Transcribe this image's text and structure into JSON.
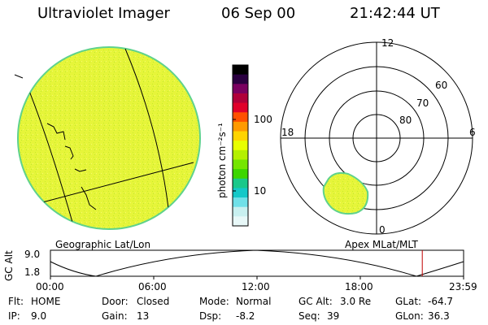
{
  "header": {
    "title": "Ultraviolet Imager",
    "date": "06 Sep 00",
    "time": "21:42:44 UT"
  },
  "colorbar": {
    "unit_label": "photon cm⁻²s⁻¹",
    "ticks": [
      "100",
      "10"
    ],
    "colors": [
      "#000000",
      "#2a0040",
      "#7a0060",
      "#b0003a",
      "#e0002a",
      "#ff5000",
      "#ff9a00",
      "#ffd400",
      "#e8ff00",
      "#b4f000",
      "#74e600",
      "#3cd600",
      "#1ac88a",
      "#14c8c8",
      "#70e0e8",
      "#c8f0f0",
      "#e8f8f8"
    ]
  },
  "left_panel": {
    "label": "Geographic Lat/Lon",
    "fill_color": "#e6f53a",
    "edge_color": "#5fd28c"
  },
  "right_panel": {
    "label": "Apex MLat/MLT",
    "mlt_labels": {
      "top": "12",
      "left": "18",
      "right": "6",
      "bottom": "0"
    },
    "lat_labels": [
      "60",
      "70",
      "80"
    ]
  },
  "altitude_plot": {
    "ylabel": "GC Alt",
    "yticks": [
      "9.0",
      "1.8"
    ],
    "xticks": [
      "00:00",
      "06:00",
      "12:00",
      "18:00",
      "23:59"
    ],
    "marker_color": "#c00000",
    "marker_fraction": 0.9
  },
  "status": {
    "flt_label": "Flt:",
    "flt_value": "HOME",
    "ip_label": "IP:",
    "ip_value": "9.0",
    "door_label": "Door:",
    "door_value": "Closed",
    "gain_label": "Gain:",
    "gain_value": "13",
    "mode_label": "Mode:",
    "mode_value": "Normal",
    "dsp_label": "Dsp:",
    "dsp_value": "-8.2",
    "gcalt_label": "GC Alt:",
    "gcalt_value": "3.0 Re",
    "seq_label": "Seq:",
    "seq_value": "39",
    "glat_label": "GLat:",
    "glat_value": "-64.7",
    "glon_label": "GLon:",
    "glon_value": "36.3"
  }
}
